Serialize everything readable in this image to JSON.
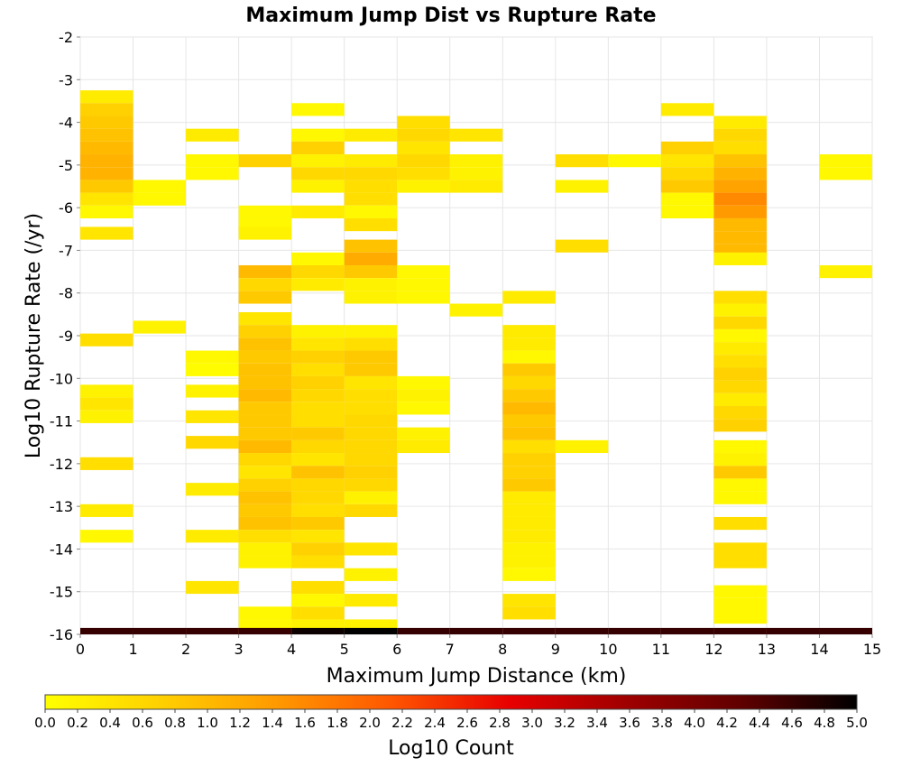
{
  "chart_data": {
    "type": "heatmap",
    "title": "Maximum Jump Dist vs Rupture Rate",
    "xlabel": "Maximum Jump Distance (km)",
    "ylabel": "Log10 Rupture Rate (/yr)",
    "colorbar_label": "Log10 Count",
    "xlim": [
      0,
      15
    ],
    "ylim": [
      -16,
      -2
    ],
    "x_ticks": [
      "0",
      "1",
      "2",
      "3",
      "4",
      "5",
      "6",
      "7",
      "8",
      "9",
      "10",
      "11",
      "12",
      "13",
      "14",
      "15"
    ],
    "y_ticks": [
      "-2",
      "-3",
      "-4",
      "-5",
      "-6",
      "-7",
      "-8",
      "-9",
      "-10",
      "-11",
      "-12",
      "-13",
      "-14",
      "-15",
      "-16"
    ],
    "colorbar_range": [
      0,
      5
    ],
    "colorbar_ticks": [
      "0.0",
      "0.2",
      "0.4",
      "0.6",
      "0.8",
      "1.0",
      "1.2",
      "1.4",
      "1.6",
      "1.8",
      "2.0",
      "2.2",
      "2.4",
      "2.6",
      "2.8",
      "3.0",
      "3.2",
      "3.4",
      "3.6",
      "3.8",
      "4.0",
      "4.2",
      "4.4",
      "4.6",
      "4.8",
      "5.0"
    ],
    "colormap": [
      "#ffff00",
      "#ffd000",
      "#ff9900",
      "#ff5500",
      "#e80000",
      "#a00000",
      "#600000",
      "#000000"
    ],
    "grid": true,
    "bin_width_x": 1,
    "bin_height_y": 0.3,
    "cells": [
      [
        0,
        -3.4,
        0.3
      ],
      [
        0,
        -3.7,
        0.7
      ],
      [
        0,
        -4.0,
        0.8
      ],
      [
        0,
        -4.3,
        0.9
      ],
      [
        0,
        -4.6,
        1.0
      ],
      [
        0,
        -4.9,
        1.1
      ],
      [
        0,
        -5.2,
        1.1
      ],
      [
        0,
        -5.5,
        0.8
      ],
      [
        0,
        -5.8,
        0.4
      ],
      [
        0,
        -6.1,
        0.1
      ],
      [
        0,
        -6.6,
        0.4
      ],
      [
        0,
        -9.1,
        0.5
      ],
      [
        0,
        -10.3,
        0.2
      ],
      [
        0,
        -10.6,
        0.4
      ],
      [
        0,
        -10.9,
        0.2
      ],
      [
        0,
        -12.0,
        0.5
      ],
      [
        0,
        -13.1,
        0.3
      ],
      [
        0,
        -13.7,
        0.1
      ],
      [
        1,
        -5.5,
        0.1
      ],
      [
        1,
        -5.8,
        0.1
      ],
      [
        1,
        -8.8,
        0.2
      ],
      [
        2,
        -4.3,
        0.3
      ],
      [
        2,
        -4.9,
        0.1
      ],
      [
        2,
        -5.2,
        0.1
      ],
      [
        2,
        -9.5,
        0.1
      ],
      [
        2,
        -9.8,
        0.05
      ],
      [
        2,
        -10.3,
        0.2
      ],
      [
        2,
        -10.9,
        0.4
      ],
      [
        2,
        -11.5,
        0.6
      ],
      [
        2,
        -12.6,
        0.3
      ],
      [
        2,
        -13.7,
        0.3
      ],
      [
        2,
        -14.9,
        0.4
      ],
      [
        3,
        -4.9,
        0.7
      ],
      [
        3,
        -6.1,
        0.1
      ],
      [
        3,
        -6.4,
        0.1
      ],
      [
        3,
        -6.6,
        0.2
      ],
      [
        3,
        -7.5,
        1.0
      ],
      [
        3,
        -7.8,
        0.6
      ],
      [
        3,
        -8.1,
        0.8
      ],
      [
        3,
        -8.6,
        0.4
      ],
      [
        3,
        -8.9,
        0.7
      ],
      [
        3,
        -9.2,
        0.9
      ],
      [
        3,
        -9.5,
        0.8
      ],
      [
        3,
        -9.8,
        0.9
      ],
      [
        3,
        -10.1,
        0.9
      ],
      [
        3,
        -10.4,
        1.0
      ],
      [
        3,
        -10.7,
        0.8
      ],
      [
        3,
        -11.0,
        0.8
      ],
      [
        3,
        -11.3,
        0.8
      ],
      [
        3,
        -11.6,
        1.0
      ],
      [
        3,
        -11.9,
        0.6
      ],
      [
        3,
        -12.2,
        0.4
      ],
      [
        3,
        -12.5,
        0.7
      ],
      [
        3,
        -12.8,
        0.9
      ],
      [
        3,
        -13.1,
        0.8
      ],
      [
        3,
        -13.4,
        0.9
      ],
      [
        3,
        -13.7,
        0.5
      ],
      [
        3,
        -14.0,
        0.2
      ],
      [
        3,
        -14.3,
        0.2
      ],
      [
        3,
        -15.5,
        0.1
      ],
      [
        3,
        -15.8,
        0.1
      ],
      [
        4,
        -3.7,
        0.1
      ],
      [
        4,
        -4.3,
        0.1
      ],
      [
        4,
        -4.6,
        0.7
      ],
      [
        4,
        -4.9,
        0.2
      ],
      [
        4,
        -5.2,
        0.6
      ],
      [
        4,
        -5.5,
        0.2
      ],
      [
        4,
        -6.1,
        0.3
      ],
      [
        4,
        -7.2,
        0.1
      ],
      [
        4,
        -7.5,
        0.6
      ],
      [
        4,
        -7.8,
        0.3
      ],
      [
        4,
        -8.9,
        0.2
      ],
      [
        4,
        -9.2,
        0.4
      ],
      [
        4,
        -9.5,
        0.7
      ],
      [
        4,
        -9.8,
        0.5
      ],
      [
        4,
        -10.1,
        0.7
      ],
      [
        4,
        -10.4,
        0.6
      ],
      [
        4,
        -10.7,
        0.5
      ],
      [
        4,
        -11.0,
        0.5
      ],
      [
        4,
        -11.3,
        0.8
      ],
      [
        4,
        -11.6,
        0.6
      ],
      [
        4,
        -11.9,
        0.4
      ],
      [
        4,
        -12.2,
        0.9
      ],
      [
        4,
        -12.5,
        0.6
      ],
      [
        4,
        -12.8,
        0.6
      ],
      [
        4,
        -13.1,
        0.5
      ],
      [
        4,
        -13.4,
        0.8
      ],
      [
        4,
        -13.7,
        0.4
      ],
      [
        4,
        -14.0,
        0.7
      ],
      [
        4,
        -14.3,
        0.5
      ],
      [
        4,
        -14.9,
        0.5
      ],
      [
        4,
        -15.2,
        0.1
      ],
      [
        4,
        -15.5,
        0.5
      ],
      [
        4,
        -15.8,
        0.2
      ],
      [
        5,
        -4.3,
        0.3
      ],
      [
        5,
        -4.9,
        0.3
      ],
      [
        5,
        -5.2,
        0.6
      ],
      [
        5,
        -5.5,
        0.5
      ],
      [
        5,
        -5.8,
        0.5
      ],
      [
        5,
        -6.1,
        0.1
      ],
      [
        5,
        -6.4,
        0.5
      ],
      [
        5,
        -6.9,
        0.9
      ],
      [
        5,
        -7.2,
        1.2
      ],
      [
        5,
        -7.5,
        0.8
      ],
      [
        5,
        -7.8,
        0.2
      ],
      [
        5,
        -8.1,
        0.2
      ],
      [
        5,
        -8.9,
        0.2
      ],
      [
        5,
        -9.2,
        0.5
      ],
      [
        5,
        -9.5,
        0.8
      ],
      [
        5,
        -9.8,
        0.8
      ],
      [
        5,
        -10.1,
        0.4
      ],
      [
        5,
        -10.4,
        0.5
      ],
      [
        5,
        -10.7,
        0.5
      ],
      [
        5,
        -11.0,
        0.6
      ],
      [
        5,
        -11.3,
        0.6
      ],
      [
        5,
        -11.6,
        0.6
      ],
      [
        5,
        -11.9,
        0.6
      ],
      [
        5,
        -12.2,
        0.7
      ],
      [
        5,
        -12.5,
        0.6
      ],
      [
        5,
        -12.8,
        0.2
      ],
      [
        5,
        -13.1,
        0.6
      ],
      [
        5,
        -14.0,
        0.4
      ],
      [
        5,
        -14.6,
        0.2
      ],
      [
        5,
        -15.2,
        0.3
      ],
      [
        5,
        -15.8,
        0.2
      ],
      [
        6,
        -4.0,
        0.5
      ],
      [
        6,
        -4.3,
        0.6
      ],
      [
        6,
        -4.6,
        0.4
      ],
      [
        6,
        -4.9,
        0.6
      ],
      [
        6,
        -5.2,
        0.5
      ],
      [
        6,
        -5.5,
        0.2
      ],
      [
        6,
        -7.5,
        0.1
      ],
      [
        6,
        -7.8,
        0.1
      ],
      [
        6,
        -8.1,
        0.1
      ],
      [
        6,
        -10.1,
        0.1
      ],
      [
        6,
        -10.4,
        0.2
      ],
      [
        6,
        -10.7,
        0.1
      ],
      [
        6,
        -11.3,
        0.2
      ],
      [
        6,
        -11.6,
        0.3
      ],
      [
        7,
        -4.3,
        0.4
      ],
      [
        7,
        -4.9,
        0.2
      ],
      [
        7,
        -5.2,
        0.2
      ],
      [
        7,
        -5.5,
        0.3
      ],
      [
        7,
        -8.4,
        0.2
      ],
      [
        8,
        -8.1,
        0.3
      ],
      [
        8,
        -8.9,
        0.3
      ],
      [
        8,
        -9.2,
        0.3
      ],
      [
        8,
        -9.5,
        0.1
      ],
      [
        8,
        -9.8,
        0.8
      ],
      [
        8,
        -10.1,
        0.6
      ],
      [
        8,
        -10.4,
        0.8
      ],
      [
        8,
        -10.7,
        1.0
      ],
      [
        8,
        -11.0,
        0.8
      ],
      [
        8,
        -11.3,
        0.9
      ],
      [
        8,
        -11.6,
        0.5
      ],
      [
        8,
        -11.9,
        0.7
      ],
      [
        8,
        -12.2,
        0.7
      ],
      [
        8,
        -12.5,
        0.8
      ],
      [
        8,
        -12.8,
        0.3
      ],
      [
        8,
        -13.1,
        0.3
      ],
      [
        8,
        -13.4,
        0.3
      ],
      [
        8,
        -13.7,
        0.3
      ],
      [
        8,
        -14.0,
        0.2
      ],
      [
        8,
        -14.3,
        0.2
      ],
      [
        8,
        -14.6,
        0.1
      ],
      [
        8,
        -15.2,
        0.4
      ],
      [
        8,
        -15.5,
        0.5
      ],
      [
        9,
        -4.9,
        0.5
      ],
      [
        9,
        -5.5,
        0.2
      ],
      [
        9,
        -6.9,
        0.5
      ],
      [
        9,
        -11.6,
        0.2
      ],
      [
        10,
        -4.9,
        0.1
      ],
      [
        11,
        -3.7,
        0.3
      ],
      [
        11,
        -4.6,
        0.7
      ],
      [
        11,
        -4.9,
        0.4
      ],
      [
        11,
        -5.2,
        0.6
      ],
      [
        11,
        -5.5,
        0.8
      ],
      [
        11,
        -5.8,
        0.1
      ],
      [
        11,
        -6.1,
        0.1
      ],
      [
        12,
        -4.0,
        0.3
      ],
      [
        12,
        -4.3,
        0.6
      ],
      [
        12,
        -4.6,
        0.5
      ],
      [
        12,
        -4.9,
        0.9
      ],
      [
        12,
        -5.2,
        1.1
      ],
      [
        12,
        -5.5,
        1.3
      ],
      [
        12,
        -5.8,
        1.6
      ],
      [
        12,
        -6.1,
        1.4
      ],
      [
        12,
        -6.4,
        1.0
      ],
      [
        12,
        -6.7,
        1.0
      ],
      [
        12,
        -7.0,
        1.0
      ],
      [
        12,
        -7.2,
        0.2
      ],
      [
        12,
        -8.1,
        0.5
      ],
      [
        12,
        -8.4,
        0.2
      ],
      [
        12,
        -8.7,
        0.6
      ],
      [
        12,
        -9.0,
        0.1
      ],
      [
        12,
        -9.3,
        0.3
      ],
      [
        12,
        -9.6,
        0.5
      ],
      [
        12,
        -9.9,
        0.7
      ],
      [
        12,
        -10.2,
        0.6
      ],
      [
        12,
        -10.5,
        0.3
      ],
      [
        12,
        -10.8,
        0.6
      ],
      [
        12,
        -11.1,
        0.7
      ],
      [
        12,
        -11.6,
        0.1
      ],
      [
        12,
        -11.9,
        0.2
      ],
      [
        12,
        -12.2,
        0.8
      ],
      [
        12,
        -12.5,
        0.1
      ],
      [
        12,
        -12.8,
        0.1
      ],
      [
        12,
        -13.4,
        0.5
      ],
      [
        12,
        -14.0,
        0.5
      ],
      [
        12,
        -14.3,
        0.5
      ],
      [
        12,
        -15.0,
        0.1
      ],
      [
        12,
        -15.3,
        0.1
      ],
      [
        12,
        -15.6,
        0.1
      ],
      [
        14,
        -4.9,
        0.1
      ],
      [
        14,
        -5.2,
        0.1
      ],
      [
        14,
        -7.5,
        0.2
      ]
    ],
    "bottom_band": {
      "y": -16,
      "height": 0.15,
      "values": [
        4.6,
        4.6,
        4.6,
        4.6,
        4.9,
        5.0,
        4.6,
        4.6,
        4.6,
        4.6,
        4.6,
        4.6,
        4.6,
        4.6,
        4.6
      ]
    }
  }
}
